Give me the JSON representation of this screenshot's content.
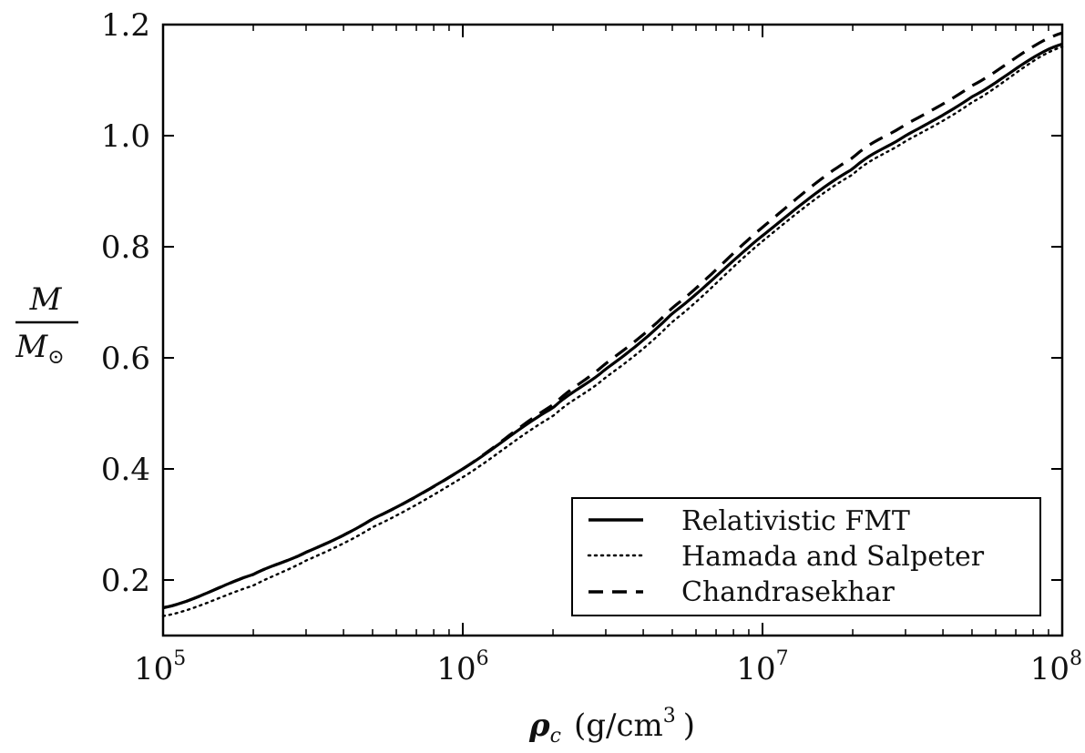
{
  "chart_data": {
    "type": "line",
    "xscale": "log",
    "xlim": [
      100000,
      100000000
    ],
    "ylim": [
      0.1,
      1.2
    ],
    "xticks": [
      100000,
      1000000,
      10000000,
      100000000
    ],
    "xtick_labels": [
      {
        "base": "10",
        "exp": "5"
      },
      {
        "base": "10",
        "exp": "6"
      },
      {
        "base": "10",
        "exp": "7"
      },
      {
        "base": "10",
        "exp": "8"
      }
    ],
    "yticks": [
      0.2,
      0.4,
      0.6,
      0.8,
      1.0,
      1.2
    ],
    "ytick_labels": [
      "0.2",
      "0.4",
      "0.6",
      "0.8",
      "1.0",
      "1.2"
    ],
    "xlabel": {
      "symbol": "ρ",
      "subscript": "c",
      "unit_open": "(g/cm",
      "unit_exp": "3",
      "unit_close": ")"
    },
    "ylabel": {
      "numerator": "M",
      "denominator": "M",
      "denominator_subscript": "⊙"
    },
    "legend_position": "lower-right",
    "grid": false,
    "series": [
      {
        "name": "Relativistic FMT",
        "style": "solid",
        "color": "#000000",
        "x": [
          100000,
          200000,
          300000,
          500000,
          1000000,
          2000000,
          3000000,
          5000000,
          10000000,
          20000000,
          30000000,
          50000000,
          100000000
        ],
        "y": [
          0.15,
          0.21,
          0.25,
          0.31,
          0.4,
          0.51,
          0.58,
          0.68,
          0.82,
          0.94,
          1.0,
          1.07,
          1.165
        ]
      },
      {
        "name": "Hamada and Salpeter",
        "style": "dotted",
        "color": "#000000",
        "x": [
          100000,
          200000,
          300000,
          500000,
          1000000,
          2000000,
          3000000,
          5000000,
          10000000,
          20000000,
          30000000,
          50000000,
          100000000
        ],
        "y": [
          0.135,
          0.19,
          0.235,
          0.295,
          0.385,
          0.495,
          0.565,
          0.665,
          0.81,
          0.93,
          0.99,
          1.06,
          1.16
        ]
      },
      {
        "name": "Chandrasekhar",
        "style": "dashed",
        "color": "#000000",
        "x": [
          100000,
          200000,
          300000,
          500000,
          1000000,
          2000000,
          3000000,
          5000000,
          10000000,
          20000000,
          30000000,
          50000000,
          100000000
        ],
        "y": [
          0.15,
          0.21,
          0.25,
          0.31,
          0.4,
          0.515,
          0.59,
          0.69,
          0.835,
          0.96,
          1.02,
          1.09,
          1.185
        ]
      }
    ]
  }
}
